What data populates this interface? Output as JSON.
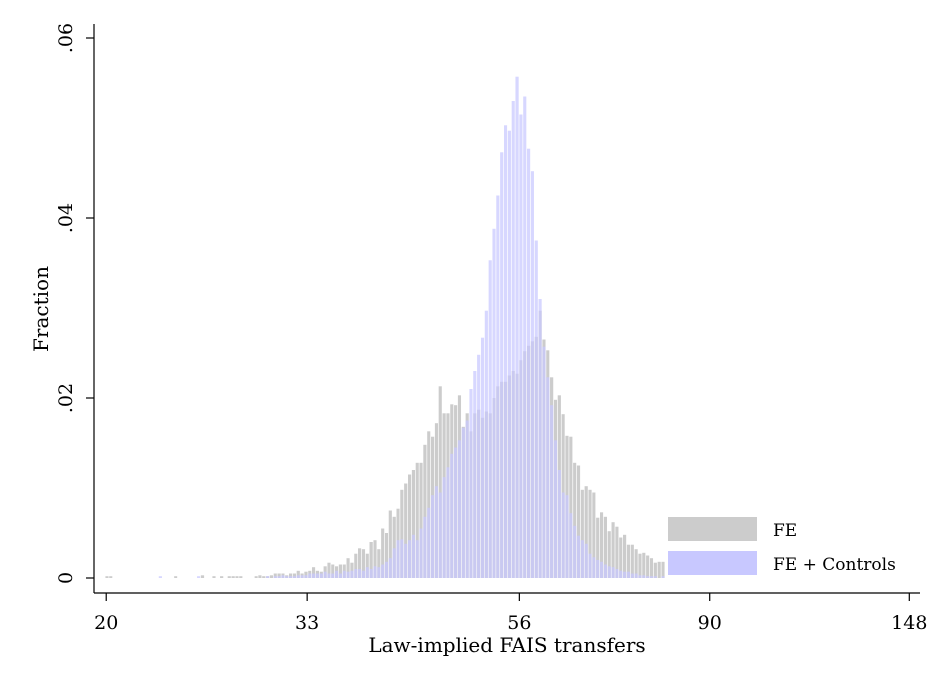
{
  "chart_data": {
    "type": "bar",
    "subtype": "overlaid-histogram",
    "xlabel": "Law-implied FAIS transfers",
    "ylabel": "Fraction",
    "x_scale": "log",
    "xlim": [
      19.4,
      152
    ],
    "ylim": [
      0,
      0.06
    ],
    "x_ticks": [
      20,
      33,
      56,
      90,
      148
    ],
    "x_tick_labels": [
      "20",
      "33",
      "56",
      "90",
      "148"
    ],
    "y_ticks": [
      0,
      0.02,
      0.04,
      0.06
    ],
    "y_tick_labels": [
      "0",
      ".02",
      ".04",
      ".06"
    ],
    "grid": false,
    "legend_position": "bottom-right",
    "bin_edges": [
      19.96,
      20.15,
      20.34,
      20.54,
      20.73,
      20.93,
      21.13,
      21.33,
      21.54,
      21.74,
      21.95,
      22.16,
      22.37,
      22.59,
      22.8,
      23.02,
      23.24,
      23.46,
      23.69,
      23.91,
      24.14,
      24.37,
      24.61,
      24.85,
      25.08,
      25.32,
      25.57,
      25.81,
      26.06,
      26.31,
      26.56,
      26.82,
      27.07,
      27.33,
      27.6,
      27.86,
      28.13,
      28.4,
      28.67,
      28.95,
      29.22,
      29.5,
      29.79,
      30.07,
      30.36,
      30.65,
      30.95,
      31.24,
      31.54,
      31.85,
      32.15,
      32.46,
      32.77,
      33.09,
      33.4,
      33.72,
      34.05,
      34.38,
      34.71,
      35.04,
      35.37,
      35.71,
      36.06,
      36.4,
      36.75,
      37.11,
      37.46,
      37.82,
      38.19,
      38.55,
      38.93,
      39.3,
      39.68,
      40.06,
      40.44,
      40.83,
      41.23,
      41.62,
      42.02,
      42.43,
      42.84,
      43.25,
      43.66,
      44.08,
      44.51,
      44.93,
      45.37,
      45.8,
      46.24,
      46.69,
      47.14,
      47.59,
      48.05,
      48.51,
      48.98,
      49.45,
      49.92,
      50.4,
      50.89,
      51.38,
      51.87,
      52.37,
      52.87,
      53.38,
      53.9,
      54.41,
      54.94,
      55.46,
      56.0,
      56.54,
      57.08,
      57.63,
      58.18,
      58.74,
      59.31,
      59.88,
      60.45,
      61.04,
      61.62,
      62.22,
      62.81,
      63.42,
      64.03,
      64.64,
      65.27,
      65.89,
      66.53,
      67.17,
      67.81,
      68.47,
      69.12,
      69.79,
      70.46,
      71.14,
      71.82,
      72.51,
      73.21,
      73.91,
      74.63,
      75.34,
      76.07,
      76.8,
      77.54,
      78.28,
      79.04,
      79.8,
      80.56
    ],
    "series": [
      {
        "name": "FE",
        "color": "#cccccc",
        "values": [
          0.0002,
          0.0002,
          0,
          0,
          0,
          0,
          0,
          0,
          0,
          0,
          0,
          0,
          0,
          0,
          0,
          0,
          0,
          0,
          0.0002,
          0,
          0,
          0,
          0,
          0,
          0,
          0.0003,
          0,
          0,
          0.0002,
          0,
          0.0002,
          0,
          0.0002,
          0.0002,
          0.0002,
          0.0002,
          0,
          0,
          0,
          0.0002,
          0.0003,
          0.0002,
          0.0002,
          0.0003,
          0.0005,
          0.0005,
          0.0005,
          0.0003,
          0.0005,
          0.0005,
          0.0008,
          0.0005,
          0.0007,
          0.0008,
          0.0012,
          0.0008,
          0.0007,
          0.0013,
          0.0017,
          0.0015,
          0.0013,
          0.0015,
          0.0015,
          0.0022,
          0.0017,
          0.0027,
          0.0033,
          0.0032,
          0.0027,
          0.004,
          0.0042,
          0.0032,
          0.0055,
          0.005,
          0.0075,
          0.0068,
          0.0077,
          0.0098,
          0.0105,
          0.0115,
          0.012,
          0.0128,
          0.0128,
          0.0148,
          0.0163,
          0.0157,
          0.0172,
          0.0213,
          0.0183,
          0.0183,
          0.0193,
          0.0192,
          0.0203,
          0.0168,
          0.0183,
          0.0163,
          0.0183,
          0.0187,
          0.0178,
          0.0185,
          0.0183,
          0.02,
          0.0213,
          0.0218,
          0.0218,
          0.0225,
          0.023,
          0.0227,
          0.0242,
          0.0252,
          0.0258,
          0.0263,
          0.0268,
          0.0297,
          0.0265,
          0.0253,
          0.0223,
          0.0198,
          0.0203,
          0.0182,
          0.0158,
          0.0157,
          0.0128,
          0.0125,
          0.0098,
          0.0102,
          0.0098,
          0.0095,
          0.0067,
          0.0073,
          0.0068,
          0.0052,
          0.0062,
          0.0057,
          0.0045,
          0.0048,
          0.0037,
          0.0037,
          0.0032,
          0.0027,
          0.0028,
          0.0025,
          0.0022,
          0.0017,
          0.0018,
          0.0018,
          0.0012,
          0.0013
        ]
      },
      {
        "name": "FE + Controls",
        "color": "#c8c8ff",
        "values": [
          0,
          0,
          0,
          0,
          0,
          0,
          0,
          0,
          0,
          0,
          0,
          0,
          0,
          0,
          0.0002,
          0,
          0,
          0,
          0,
          0,
          0,
          0,
          0,
          0,
          0.0002,
          0,
          0,
          0,
          0,
          0,
          0,
          0,
          0,
          0,
          0,
          0,
          0,
          0,
          0,
          0,
          0,
          0,
          0.0002,
          0,
          0.0002,
          0.0002,
          0.0003,
          0.0002,
          0.0002,
          0.0002,
          0.0003,
          0.0003,
          0.0003,
          0.0005,
          0.0005,
          0.0005,
          0.0005,
          0.0007,
          0.0005,
          0.0005,
          0.0008,
          0.0005,
          0.0008,
          0.0007,
          0.0008,
          0.001,
          0.001,
          0.0008,
          0.0012,
          0.001,
          0.0013,
          0.0012,
          0.0015,
          0.0018,
          0.0022,
          0.0033,
          0.0042,
          0.0043,
          0.0038,
          0.0042,
          0.0048,
          0.0042,
          0.0055,
          0.0068,
          0.0078,
          0.0092,
          0.0102,
          0.0095,
          0.0112,
          0.0123,
          0.0138,
          0.0145,
          0.0153,
          0.0167,
          0.0175,
          0.021,
          0.023,
          0.0248,
          0.0267,
          0.0297,
          0.0353,
          0.0388,
          0.0425,
          0.0473,
          0.0503,
          0.0497,
          0.053,
          0.0557,
          0.0515,
          0.0535,
          0.0477,
          0.0452,
          0.0375,
          0.031,
          0.0257,
          0.0223,
          0.0192,
          0.0153,
          0.012,
          0.0095,
          0.0092,
          0.0072,
          0.0058,
          0.0047,
          0.0042,
          0.0038,
          0.0027,
          0.0023,
          0.002,
          0.0018,
          0.0015,
          0.0013,
          0.0012,
          0.001,
          0.0008,
          0.0007,
          0.0007,
          0.0005,
          0.0005,
          0.0003,
          0.0003,
          0.0002,
          0.0002,
          0.0002,
          0,
          0.0002
        ]
      }
    ]
  }
}
